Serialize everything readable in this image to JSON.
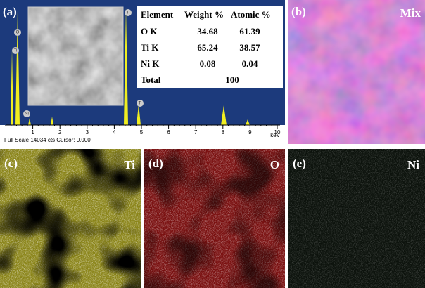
{
  "panel_a": {
    "label": "(a)",
    "table": {
      "header": [
        "Element",
        "Weight %",
        "Atomic %"
      ],
      "rows": [
        [
          "O K",
          "34.68",
          "61.39"
        ],
        [
          "Ti K",
          "65.24",
          "38.57"
        ],
        [
          "Ni K",
          "0.08",
          "0.04"
        ],
        [
          "Total",
          "100"
        ]
      ]
    },
    "peak_labels": [
      "O",
      "Ti",
      "Ni",
      "Ti",
      "Ti"
    ],
    "x_ticks": [
      "1",
      "2",
      "3",
      "4",
      "5",
      "6",
      "7",
      "8",
      "9",
      "10"
    ],
    "x_unit": "keV",
    "status": "Full Scale 14034 cts Cursor: 0.000"
  },
  "panel_b": {
    "label": "(b)",
    "element": "Mix"
  },
  "panel_c": {
    "label": "(c)",
    "element": "Ti"
  },
  "panel_d": {
    "label": "(d)",
    "element": "O"
  },
  "panel_e": {
    "label": "(e)",
    "element": "Ni"
  }
}
